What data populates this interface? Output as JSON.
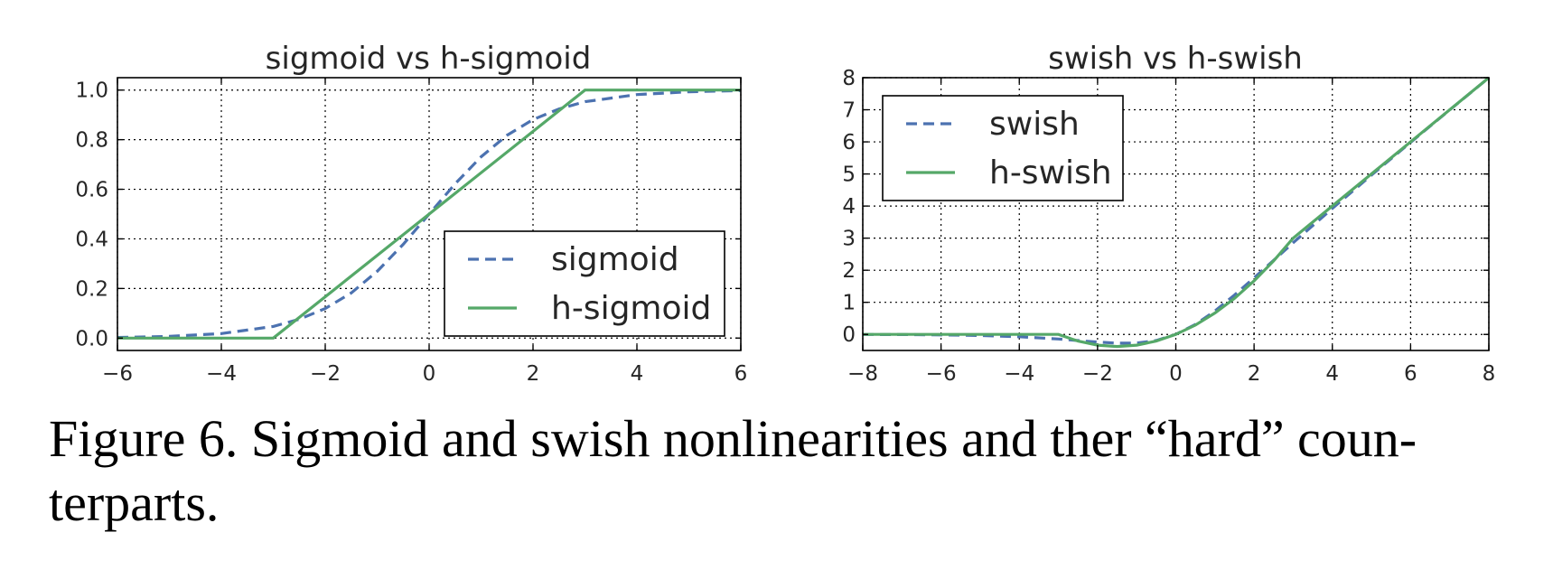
{
  "figure": {
    "caption": "Figure 6. Sigmoid and swish nonlinearities and ther “hard” coun- terparts.",
    "caption_lines": [
      "Figure 6. Sigmoid and swish nonlinearities and ther “hard” coun-",
      "terparts."
    ]
  },
  "colors": {
    "dashed": "#4c72b0",
    "solid": "#55a868",
    "axis": "#000000",
    "grid": "#000000"
  },
  "chart_data": [
    {
      "type": "line",
      "title": "sigmoid vs h-sigmoid",
      "xlabel": "",
      "ylabel": "",
      "xlim": [
        -6,
        6
      ],
      "ylim": [
        -0.05,
        1.05
      ],
      "xticks": [
        -6,
        -4,
        -2,
        0,
        2,
        4,
        6
      ],
      "xtick_labels": [
        "−6",
        "−4",
        "−2",
        "0",
        "2",
        "4",
        "6"
      ],
      "yticks": [
        0,
        0.2,
        0.4,
        0.6,
        0.8,
        1.0
      ],
      "ytick_labels": [
        "0.0",
        "0.2",
        "0.4",
        "0.6",
        "0.8",
        "1.0"
      ],
      "grid": true,
      "legend_position": "lower-right",
      "series": [
        {
          "name": "sigmoid",
          "style": "dashed",
          "color": "#4c72b0",
          "x": [
            -6,
            -5,
            -4,
            -3,
            -2.5,
            -2,
            -1.5,
            -1,
            -0.5,
            0,
            0.5,
            1,
            1.5,
            2,
            2.5,
            3,
            4,
            5,
            6
          ],
          "y": [
            0.0025,
            0.0067,
            0.018,
            0.047,
            0.076,
            0.119,
            0.182,
            0.269,
            0.378,
            0.5,
            0.622,
            0.731,
            0.818,
            0.881,
            0.924,
            0.953,
            0.982,
            0.993,
            0.998
          ]
        },
        {
          "name": "h-sigmoid",
          "style": "solid",
          "color": "#55a868",
          "x": [
            -6,
            -3,
            3,
            6
          ],
          "y": [
            0,
            0,
            1,
            1
          ]
        }
      ]
    },
    {
      "type": "line",
      "title": "swish vs h-swish",
      "xlabel": "",
      "ylabel": "",
      "xlim": [
        -8,
        8
      ],
      "ylim": [
        -0.5,
        8
      ],
      "xticks": [
        -8,
        -6,
        -4,
        -2,
        0,
        2,
        4,
        6,
        8
      ],
      "xtick_labels": [
        "−8",
        "−6",
        "−4",
        "−2",
        "0",
        "2",
        "4",
        "6",
        "8"
      ],
      "yticks": [
        0,
        1,
        2,
        3,
        4,
        5,
        6,
        7,
        8
      ],
      "ytick_labels": [
        "0",
        "1",
        "2",
        "3",
        "4",
        "5",
        "6",
        "7",
        "8"
      ],
      "grid": true,
      "legend_position": "top-left",
      "series": [
        {
          "name": "swish",
          "style": "dashed",
          "color": "#4c72b0",
          "x": [
            -8,
            -7,
            -6,
            -5,
            -4,
            -3,
            -2.5,
            -2,
            -1.5,
            -1,
            -0.5,
            0,
            0.5,
            1,
            1.5,
            2,
            2.5,
            3,
            4,
            5,
            6,
            7,
            8
          ],
          "y": [
            -0.003,
            -0.006,
            -0.015,
            -0.033,
            -0.072,
            -0.142,
            -0.19,
            -0.238,
            -0.273,
            -0.269,
            -0.189,
            0,
            0.311,
            0.731,
            1.227,
            1.762,
            2.31,
            2.858,
            3.928,
            4.967,
            5.985,
            6.994,
            7.997
          ]
        },
        {
          "name": "h-swish",
          "style": "solid",
          "color": "#55a868",
          "x": [
            -8,
            -3,
            -2.5,
            -2,
            -1.5,
            -1,
            -0.5,
            0,
            0.5,
            1,
            1.5,
            2,
            2.5,
            3,
            8
          ],
          "y": [
            0,
            0,
            -0.208,
            -0.333,
            -0.375,
            -0.333,
            -0.208,
            0,
            0.292,
            0.667,
            1.125,
            1.667,
            2.292,
            3,
            8
          ]
        }
      ]
    }
  ]
}
